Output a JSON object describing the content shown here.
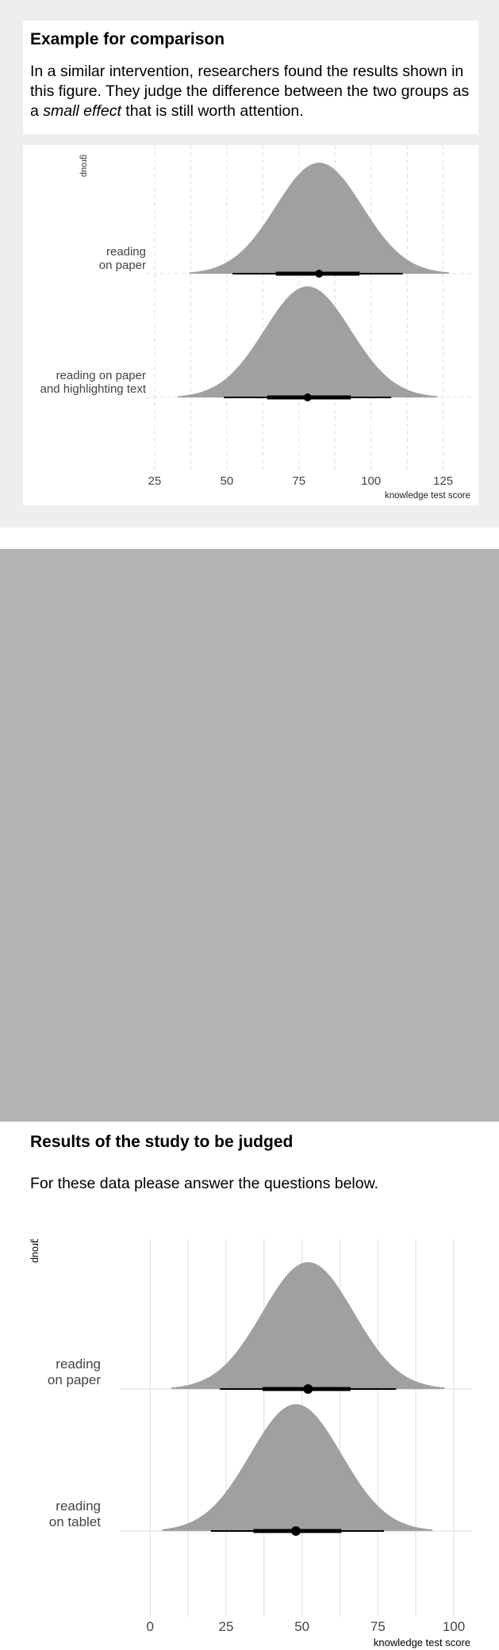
{
  "example": {
    "title": "Example for comparison",
    "body_pre": "In a similar intervention, researchers found the results shown in this figure. They judge the difference between the two groups as a ",
    "body_em": "small effect",
    "body_post": " that is still worth attention."
  },
  "study": {
    "title": "Results of the study to be judged",
    "body": "For these data please answer the questions below."
  },
  "colors": {
    "density": "#a0a0a0",
    "interval": "#000000",
    "grid": "#dcdcdc",
    "axis_text": "#444444",
    "panel_top_bg": "#eeeeee",
    "panel_bottom_bg": "#b3b3b3"
  },
  "chart_data": [
    {
      "type": "area",
      "subtype": "half-eye density with point and interval",
      "xlabel": "knowledge test score",
      "ylabel": "group",
      "xlim": [
        22,
        135
      ],
      "xticks": [
        "25",
        "50",
        "75",
        "100",
        "125"
      ],
      "grid": "dashed vertical",
      "series": [
        {
          "name": "reading\non paper",
          "mean": 82,
          "sd": 15,
          "density_range": [
            37,
            127
          ],
          "interval_95": [
            52,
            111
          ],
          "interval_66": [
            67,
            96
          ],
          "point": 82
        },
        {
          "name": "reading on paper\nand highlighting text",
          "mean": 78,
          "sd": 15,
          "density_range": [
            33,
            123
          ],
          "interval_95": [
            49,
            107
          ],
          "interval_66": [
            64,
            93
          ],
          "point": 78
        }
      ]
    },
    {
      "type": "area",
      "subtype": "half-eye density with point and interval",
      "xlabel": "knowledge test score",
      "ylabel": "group",
      "xlim": [
        -10,
        106
      ],
      "xticks": [
        "0",
        "25",
        "50",
        "75",
        "100"
      ],
      "grid": "solid vertical",
      "series": [
        {
          "name": "reading\non paper",
          "mean": 52,
          "sd": 15,
          "density_range": [
            7,
            97
          ],
          "interval_95": [
            23,
            81
          ],
          "interval_66": [
            37,
            66
          ],
          "point": 52
        },
        {
          "name": "reading\non tablet",
          "mean": 48,
          "sd": 15,
          "density_range": [
            4,
            93
          ],
          "interval_95": [
            20,
            77
          ],
          "interval_66": [
            34,
            63
          ],
          "point": 48
        }
      ]
    }
  ]
}
